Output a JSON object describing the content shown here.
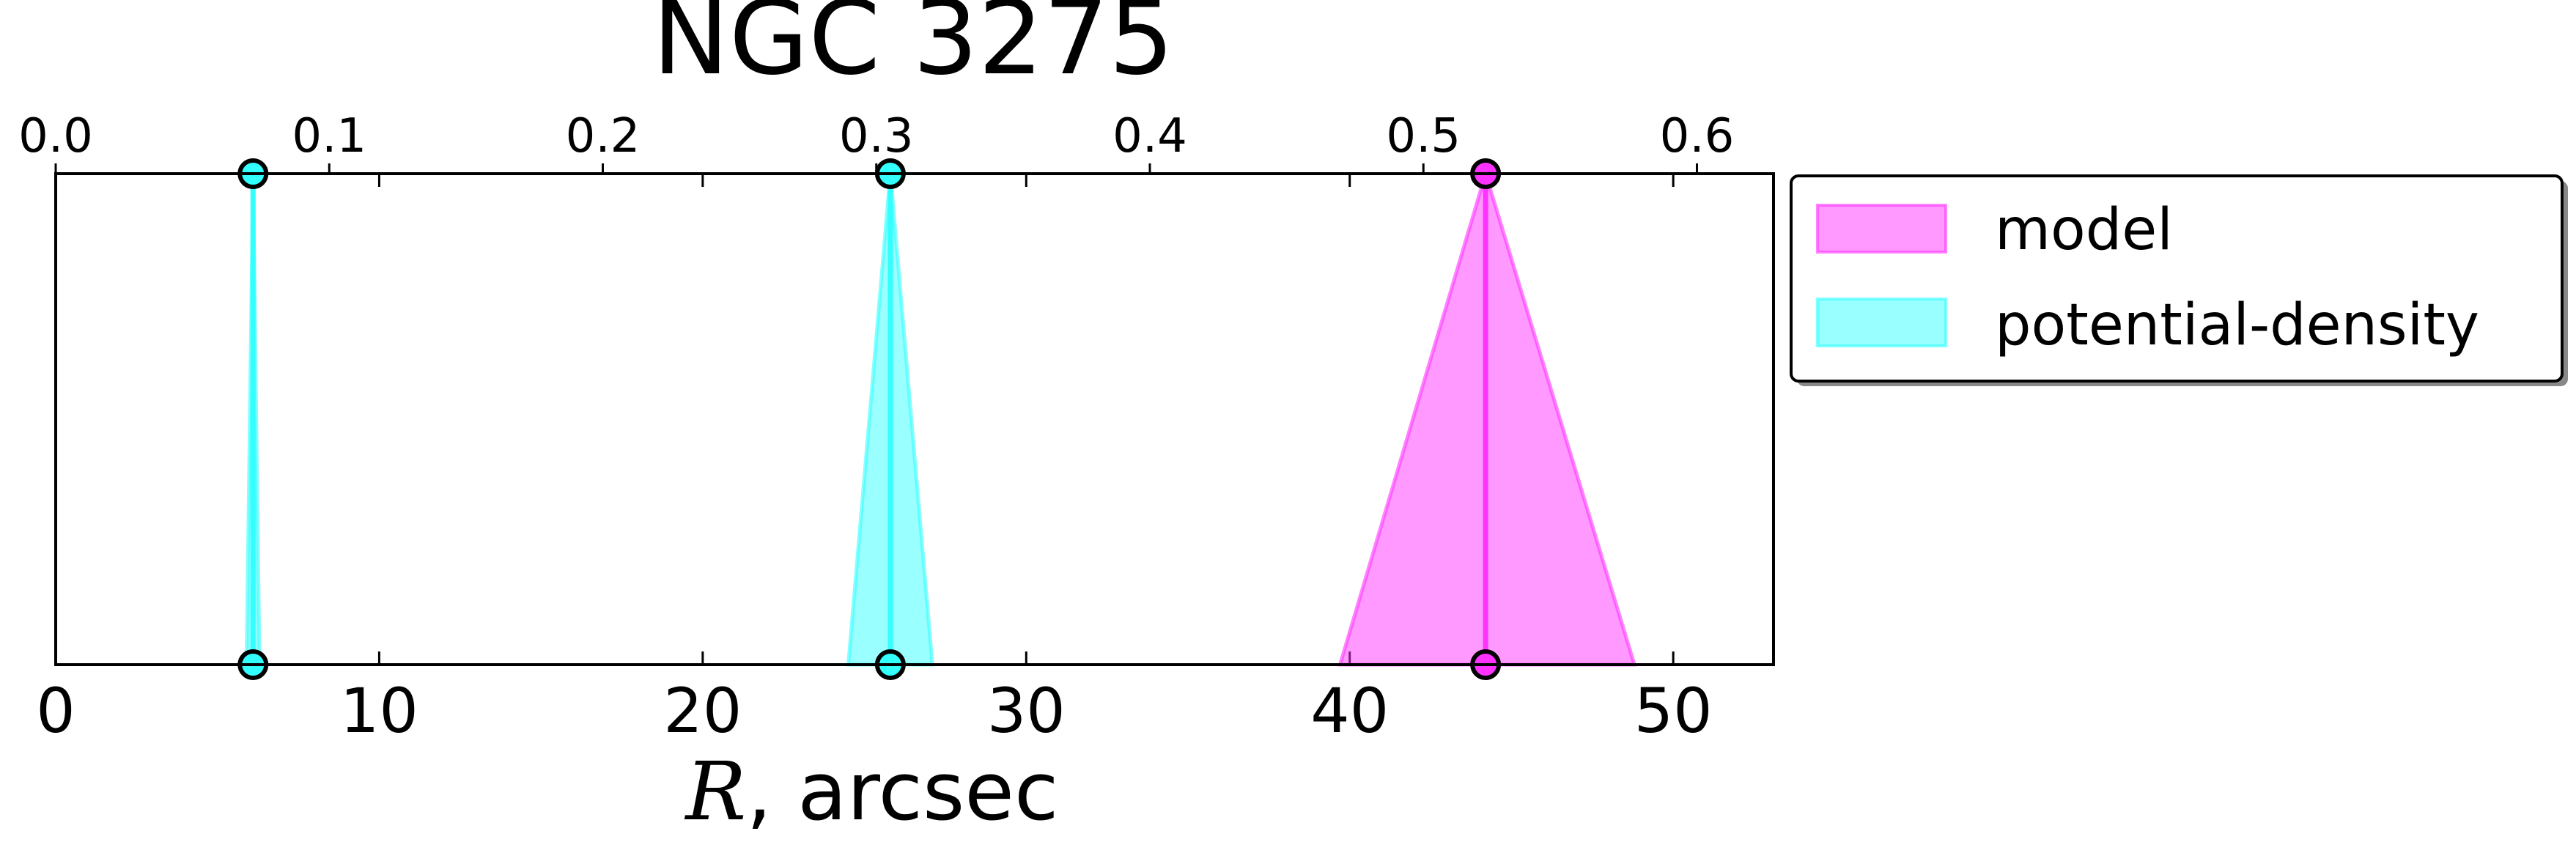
{
  "chart_data": {
    "type": "area",
    "title": "NGC 3275",
    "xlabel_symbol": "R",
    "xlabel_unit": ", arcsec",
    "xlim": [
      0,
      53.1
    ],
    "x_ticks": [
      0,
      10,
      20,
      30,
      40,
      50
    ],
    "top_xlim": [
      0,
      0.628
    ],
    "top_ticks": [
      "0.0",
      "0.1",
      "0.2",
      "0.3",
      "0.4",
      "0.5",
      "0.6"
    ],
    "grid": false,
    "legend_position": "outside-right",
    "series": [
      {
        "name": "model",
        "color": "#ff33ff",
        "features": [
          {
            "center": 44.2,
            "low": 39.7,
            "high": 48.8
          }
        ]
      },
      {
        "name": "potential-density",
        "color": "#33ffff",
        "features": [
          {
            "center": 6.1,
            "low": 5.9,
            "high": 6.3
          },
          {
            "center": 25.8,
            "low": 24.5,
            "high": 27.1
          }
        ]
      }
    ]
  }
}
